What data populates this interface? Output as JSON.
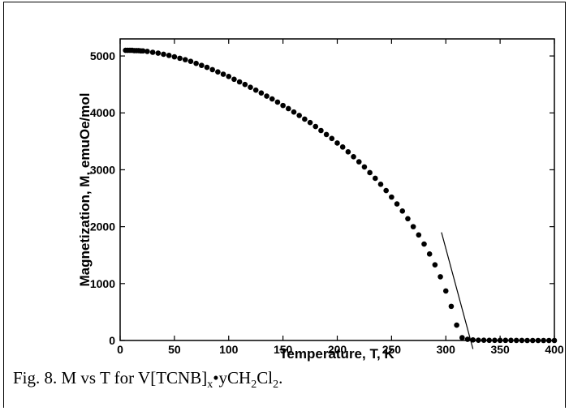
{
  "chart_data": {
    "type": "scatter",
    "xlabel": "Temperature, T, K",
    "ylabel": "Magnetization, M, emuOe/mol",
    "xlim": [
      0,
      400
    ],
    "ylim": [
      0,
      5300
    ],
    "xticks": [
      0,
      50,
      100,
      150,
      200,
      250,
      300,
      350,
      400
    ],
    "yticks": [
      0,
      1000,
      2000,
      3000,
      4000,
      5000
    ],
    "grid": false,
    "series": [
      {
        "x": [
          5,
          7,
          9,
          11,
          13,
          15,
          17,
          19,
          21,
          25,
          30,
          35,
          40,
          45,
          50,
          55,
          60,
          65,
          70,
          75,
          80,
          85,
          90,
          95,
          100,
          105,
          110,
          115,
          120,
          125,
          130,
          135,
          140,
          145,
          150,
          155,
          160,
          165,
          170,
          175,
          180,
          185,
          190,
          195,
          200,
          205,
          210,
          215,
          220,
          225,
          230,
          235,
          240,
          245,
          250,
          255,
          260,
          265,
          270,
          275,
          280,
          285,
          290,
          295,
          300,
          305,
          310,
          315,
          320,
          325,
          330,
          335,
          340,
          345,
          350,
          355,
          360,
          365,
          370,
          375,
          380,
          385,
          390,
          395,
          400
        ],
        "y": [
          5100,
          5100,
          5100,
          5100,
          5095,
          5095,
          5095,
          5090,
          5090,
          5080,
          5065,
          5050,
          5030,
          5010,
          4985,
          4960,
          4935,
          4905,
          4870,
          4835,
          4800,
          4760,
          4720,
          4680,
          4640,
          4590,
          4545,
          4500,
          4450,
          4400,
          4350,
          4295,
          4245,
          4190,
          4130,
          4075,
          4015,
          3955,
          3890,
          3830,
          3760,
          3690,
          3620,
          3550,
          3470,
          3400,
          3315,
          3230,
          3140,
          3050,
          2950,
          2850,
          2745,
          2635,
          2520,
          2400,
          2275,
          2140,
          2000,
          1855,
          1695,
          1520,
          1330,
          1120,
          870,
          600,
          270,
          50,
          20,
          10,
          5,
          5,
          3,
          3,
          2,
          2,
          2,
          1,
          1,
          0,
          0,
          0,
          0,
          0,
          0
        ]
      }
    ],
    "fit_line": {
      "x": [
        296,
        325
      ],
      "y": [
        1900,
        -150
      ]
    }
  },
  "caption": {
    "prefix": "Fig. 8. M vs T for V[TCNB]",
    "sub_x": "x",
    "middle": "•yCH",
    "sub_2a": "2",
    "cl": "Cl",
    "sub_2b": "2",
    "end": "."
  }
}
